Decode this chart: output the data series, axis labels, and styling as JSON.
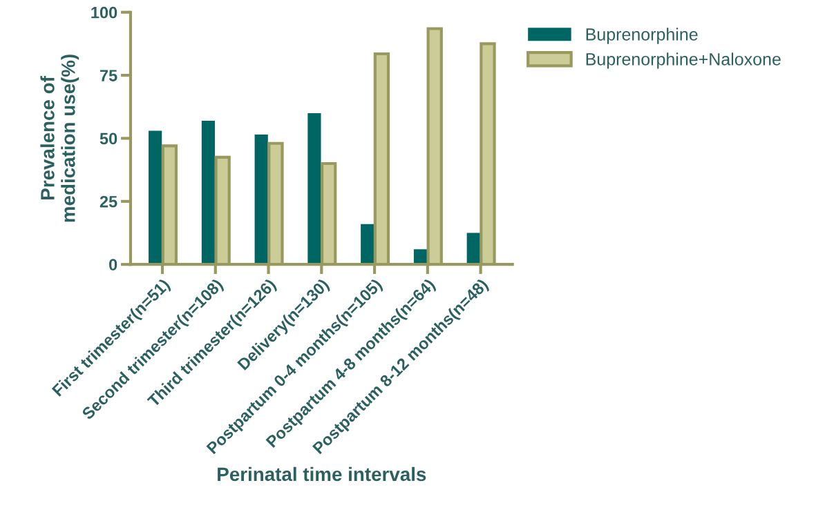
{
  "chart_data": {
    "type": "bar",
    "xlabel": "Perinatal time intervals",
    "ylabel": "Prevalence of\nmedication use(%)",
    "categories": [
      "First trimester(n=51)",
      "Second trimester(n=108)",
      "Third trimester(n=126)",
      "Delivery(n=130)",
      "Postpartum 0-4 months(n=105)",
      "Postpartum 4-8 months(n=64)",
      "Postpartum 8-12 months(n=48)"
    ],
    "series": [
      {
        "name": "Buprenorphine",
        "color": "#006664",
        "values": [
          53,
          57,
          51.5,
          60,
          16,
          6,
          12.5
        ]
      },
      {
        "name": "Buprenorphine+Naloxone",
        "color": "#cccc99",
        "values": [
          47,
          42.5,
          48,
          40,
          83.5,
          93.5,
          87.5
        ]
      }
    ],
    "ylim": [
      0,
      100
    ],
    "yticks": [
      0,
      25,
      50,
      75,
      100
    ],
    "grid": false,
    "legend": "top right"
  }
}
